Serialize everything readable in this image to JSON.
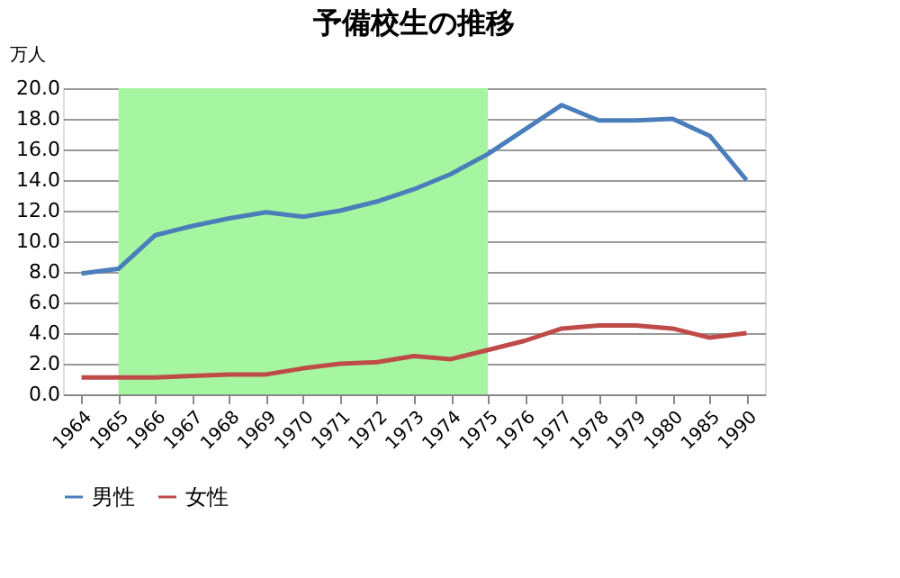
{
  "chart_data": {
    "type": "line",
    "title": "予備校生の推移",
    "ylabel": "万人",
    "categories": [
      "1964",
      "1965",
      "1966",
      "1967",
      "1968",
      "1969",
      "1970",
      "1971",
      "1972",
      "1973",
      "1974",
      "1975",
      "1976",
      "1977",
      "1978",
      "1979",
      "1980",
      "1985",
      "1990"
    ],
    "series": [
      {
        "name": "男性",
        "color": "#4a7ebb",
        "values": [
          7.9,
          8.2,
          10.4,
          11.0,
          11.5,
          11.9,
          11.6,
          12.0,
          12.6,
          13.4,
          14.4,
          15.7,
          17.3,
          18.9,
          17.9,
          17.9,
          18.0,
          16.9,
          14.0
        ]
      },
      {
        "name": "女性",
        "color": "#be4b48",
        "values": [
          1.1,
          1.1,
          1.1,
          1.2,
          1.3,
          1.3,
          1.7,
          2.0,
          2.1,
          2.5,
          2.3,
          2.9,
          3.5,
          4.3,
          4.5,
          4.5,
          4.3,
          3.7,
          4.0
        ]
      }
    ],
    "bands": [
      {
        "axis": "x",
        "from": "1965",
        "to": "1975",
        "color": "#a6f5a0"
      }
    ],
    "ylim": [
      0,
      20
    ],
    "yticks": [
      {
        "value": 0,
        "label": "0.0"
      },
      {
        "value": 2,
        "label": "2.0"
      },
      {
        "value": 4,
        "label": "4.0"
      },
      {
        "value": 6,
        "label": "6.0"
      },
      {
        "value": 8,
        "label": "8.0"
      },
      {
        "value": 10,
        "label": "10.0"
      },
      {
        "value": 12,
        "label": "12.0"
      },
      {
        "value": 14,
        "label": "14.0"
      },
      {
        "value": 16,
        "label": "16.0"
      },
      {
        "value": 18,
        "label": "18.0"
      },
      {
        "value": 20,
        "label": "20.0"
      }
    ],
    "grid": "y",
    "legend": "bottom",
    "marker": "none",
    "line_style": "solid"
  }
}
